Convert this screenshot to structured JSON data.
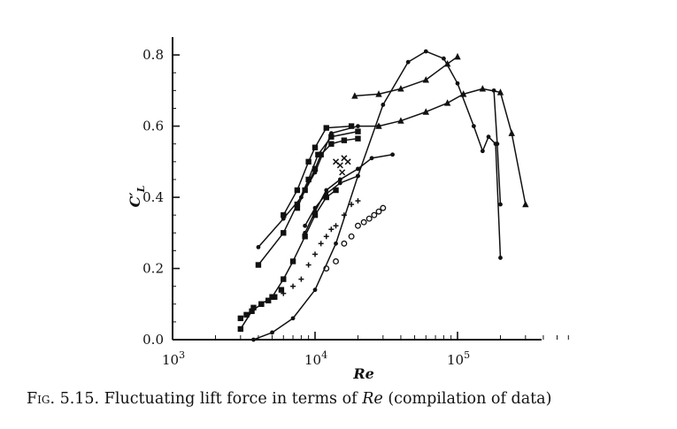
{
  "chart_data": {
    "type": "scatter",
    "title": "",
    "xlabel": "Re",
    "ylabel": "C′L",
    "xscale": "log",
    "xlim": [
      1000,
      600000
    ],
    "ylim": [
      0.0,
      0.85
    ],
    "xticks": [
      {
        "value": 1000,
        "mantissa": "10",
        "exp": "3"
      },
      {
        "value": 10000,
        "mantissa": "10",
        "exp": "4"
      },
      {
        "value": 100000,
        "mantissa": "10",
        "exp": "5"
      }
    ],
    "yticks": [
      {
        "value": 0.0,
        "label": "0.0"
      },
      {
        "value": 0.2,
        "label": "0.2"
      },
      {
        "value": 0.4,
        "label": "0.4"
      },
      {
        "value": 0.6,
        "label": "0.6"
      },
      {
        "value": 0.8,
        "label": "0.8"
      }
    ],
    "grid": false,
    "series": [
      {
        "marker": "triangle",
        "line": true,
        "points": [
          [
            19000,
            0.685
          ],
          [
            28000,
            0.69
          ],
          [
            40000,
            0.705
          ],
          [
            60000,
            0.73
          ],
          [
            85000,
            0.775
          ],
          [
            100000,
            0.795
          ]
        ]
      },
      {
        "marker": "triangle",
        "line": true,
        "points": [
          [
            28000,
            0.6
          ],
          [
            40000,
            0.615
          ],
          [
            60000,
            0.64
          ],
          [
            85000,
            0.665
          ],
          [
            110000,
            0.69
          ],
          [
            150000,
            0.705
          ],
          [
            200000,
            0.695
          ],
          [
            240000,
            0.58
          ],
          [
            300000,
            0.38
          ]
        ]
      },
      {
        "marker": "dot",
        "line": true,
        "points": [
          [
            3700,
            0.0
          ],
          [
            5000,
            0.02
          ],
          [
            7000,
            0.06
          ],
          [
            10000,
            0.14
          ],
          [
            14000,
            0.27
          ],
          [
            20000,
            0.46
          ],
          [
            30000,
            0.66
          ],
          [
            45000,
            0.78
          ],
          [
            60000,
            0.81
          ],
          [
            80000,
            0.79
          ],
          [
            100000,
            0.72
          ],
          [
            130000,
            0.6
          ],
          [
            150000,
            0.53
          ],
          [
            165000,
            0.57
          ],
          [
            185000,
            0.55
          ],
          [
            200000,
            0.23
          ]
        ]
      },
      {
        "marker": "dot",
        "line": true,
        "points": [
          [
            180000,
            0.7
          ],
          [
            190000,
            0.55
          ],
          [
            200000,
            0.38
          ]
        ]
      },
      {
        "marker": "dot",
        "line": true,
        "points": [
          [
            4000,
            0.26
          ],
          [
            6000,
            0.34
          ],
          [
            8000,
            0.4
          ],
          [
            10000,
            0.47
          ],
          [
            13000,
            0.58
          ],
          [
            20000,
            0.6
          ],
          [
            28000,
            0.6
          ]
        ]
      },
      {
        "marker": "square",
        "line": true,
        "points": [
          [
            4000,
            0.21
          ],
          [
            6000,
            0.3
          ],
          [
            7500,
            0.38
          ],
          [
            9000,
            0.45
          ],
          [
            10500,
            0.52
          ],
          [
            13000,
            0.57
          ],
          [
            20000,
            0.585
          ]
        ]
      },
      {
        "marker": "square",
        "line": true,
        "points": [
          [
            6000,
            0.35
          ],
          [
            7500,
            0.42
          ],
          [
            9000,
            0.5
          ],
          [
            10000,
            0.54
          ],
          [
            12000,
            0.595
          ],
          [
            18000,
            0.6
          ]
        ]
      },
      {
        "marker": "square",
        "line": true,
        "points": [
          [
            7500,
            0.37
          ],
          [
            8500,
            0.42
          ],
          [
            10000,
            0.48
          ],
          [
            11000,
            0.52
          ],
          [
            13000,
            0.55
          ],
          [
            16000,
            0.56
          ],
          [
            20000,
            0.565
          ]
        ]
      },
      {
        "marker": "dot",
        "line": true,
        "points": [
          [
            8500,
            0.3
          ],
          [
            10000,
            0.36
          ],
          [
            12000,
            0.42
          ],
          [
            15000,
            0.45
          ],
          [
            20000,
            0.48
          ],
          [
            25000,
            0.51
          ],
          [
            35000,
            0.52
          ]
        ]
      },
      {
        "marker": "dot",
        "line": true,
        "points": [
          [
            8500,
            0.32
          ],
          [
            10000,
            0.37
          ],
          [
            12000,
            0.41
          ],
          [
            15000,
            0.44
          ],
          [
            20000,
            0.46
          ]
        ]
      },
      {
        "marker": "square",
        "line": true,
        "points": [
          [
            3000,
            0.03
          ],
          [
            3600,
            0.08
          ],
          [
            4200,
            0.1
          ],
          [
            5000,
            0.12
          ],
          [
            6000,
            0.17
          ],
          [
            7000,
            0.22
          ],
          [
            8500,
            0.29
          ],
          [
            10000,
            0.35
          ],
          [
            12000,
            0.4
          ],
          [
            14000,
            0.42
          ]
        ]
      },
      {
        "marker": "square",
        "line": false,
        "points": [
          [
            3000,
            0.06
          ],
          [
            3300,
            0.07
          ],
          [
            3700,
            0.09
          ],
          [
            4200,
            0.1
          ],
          [
            4700,
            0.11
          ],
          [
            5200,
            0.12
          ],
          [
            5800,
            0.14
          ]
        ]
      },
      {
        "marker": "plus",
        "line": false,
        "points": [
          [
            6000,
            0.13
          ],
          [
            7000,
            0.15
          ],
          [
            8000,
            0.17
          ],
          [
            9000,
            0.21
          ],
          [
            10000,
            0.24
          ],
          [
            11000,
            0.27
          ],
          [
            12000,
            0.29
          ],
          [
            13000,
            0.31
          ],
          [
            14000,
            0.32
          ],
          [
            16000,
            0.35
          ],
          [
            18000,
            0.38
          ],
          [
            20000,
            0.39
          ]
        ]
      },
      {
        "marker": "circle",
        "line": false,
        "points": [
          [
            12000,
            0.2
          ],
          [
            14000,
            0.22
          ],
          [
            16000,
            0.27
          ],
          [
            18000,
            0.29
          ],
          [
            20000,
            0.32
          ],
          [
            22000,
            0.33
          ],
          [
            24000,
            0.34
          ],
          [
            26000,
            0.35
          ],
          [
            28000,
            0.36
          ],
          [
            30000,
            0.37
          ]
        ]
      },
      {
        "marker": "cross",
        "line": false,
        "points": [
          [
            14000,
            0.5
          ],
          [
            15000,
            0.49
          ],
          [
            16000,
            0.51
          ],
          [
            17000,
            0.5
          ],
          [
            15500,
            0.47
          ]
        ]
      }
    ]
  },
  "caption": {
    "fig": "Fig. 5.15.",
    "text_before": "Fluctuating lift force in terms of",
    "re": "Re",
    "text_after": "(compilation of data)"
  }
}
